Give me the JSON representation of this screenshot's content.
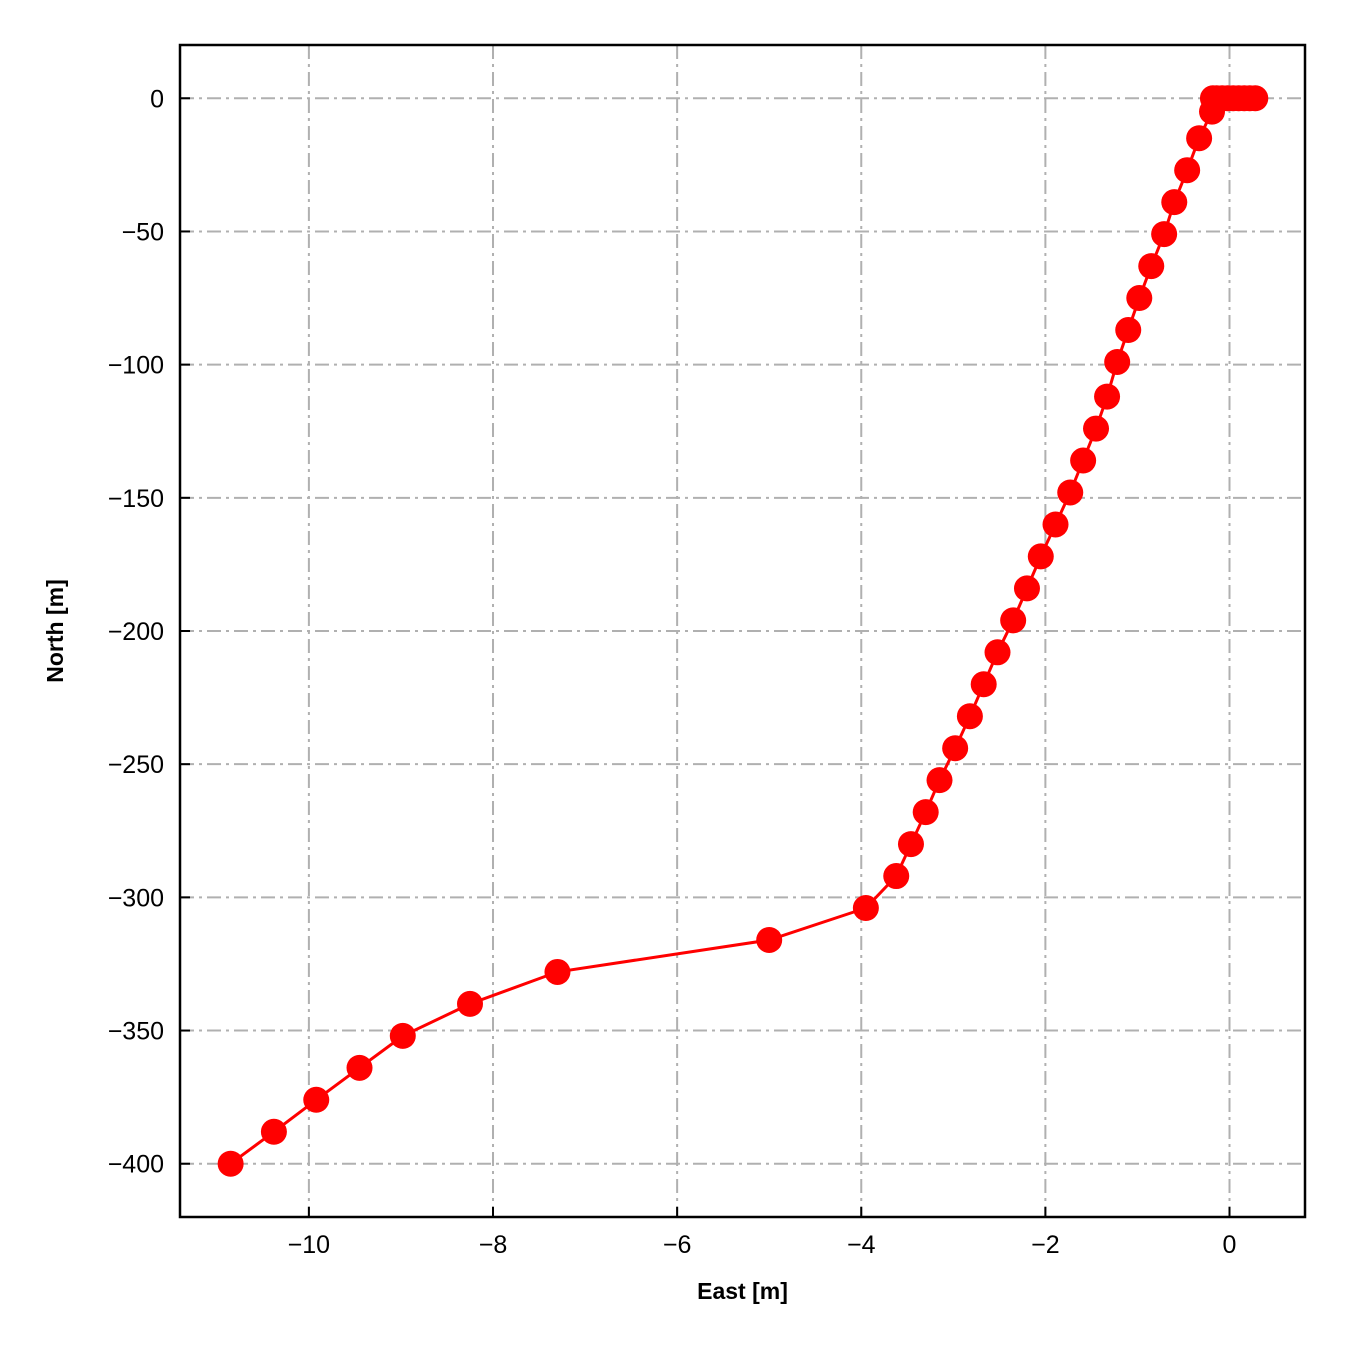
{
  "chart_data": {
    "type": "line",
    "title": "",
    "xlabel": "East [m]",
    "ylabel": "North [m]",
    "xlim": [
      -11.4,
      0.82
    ],
    "ylim": [
      -420,
      20
    ],
    "xticks": [
      -10,
      -8,
      -6,
      -4,
      -2,
      0
    ],
    "yticks": [
      0,
      -50,
      -100,
      -150,
      -200,
      -250,
      -300,
      -350,
      -400
    ],
    "xtick_labels": [
      "−10",
      "−8",
      "−6",
      "−4",
      "−2",
      "0"
    ],
    "ytick_labels": [
      "0",
      "−50",
      "−100",
      "−150",
      "−200",
      "−250",
      "−300",
      "−350",
      "−400"
    ],
    "grid": true,
    "legend": "none",
    "series": [
      {
        "color": "#ff0000",
        "marker": "circle",
        "x": [
          0.28,
          0.22,
          0.16,
          0.1,
          0.04,
          -0.02,
          -0.08,
          -0.14,
          -0.18,
          -0.19,
          -0.33,
          -0.46,
          -0.6,
          -0.71,
          -0.85,
          -0.98,
          -1.1,
          -1.22,
          -1.33,
          -1.45,
          -1.59,
          -1.73,
          -1.89,
          -2.05,
          -2.2,
          -2.35,
          -2.52,
          -2.67,
          -2.82,
          -2.98,
          -3.15,
          -3.3,
          -3.46,
          -3.62,
          -3.95,
          -5.0,
          -7.3,
          -8.25,
          -8.98,
          -9.45,
          -9.92,
          -10.38,
          -10.85
        ],
        "y": [
          0,
          0,
          0,
          0,
          0,
          0,
          0,
          0,
          0,
          -5,
          -15,
          -27,
          -39,
          -51,
          -63,
          -75,
          -87,
          -99,
          -112,
          -124,
          -136,
          -148,
          -160,
          -172,
          -184,
          -196,
          -208,
          -220,
          -232,
          -244,
          -256,
          -268,
          -280,
          -292,
          -304,
          -316,
          -328,
          -340,
          -352,
          -364,
          -376,
          -388,
          -400
        ]
      }
    ]
  }
}
